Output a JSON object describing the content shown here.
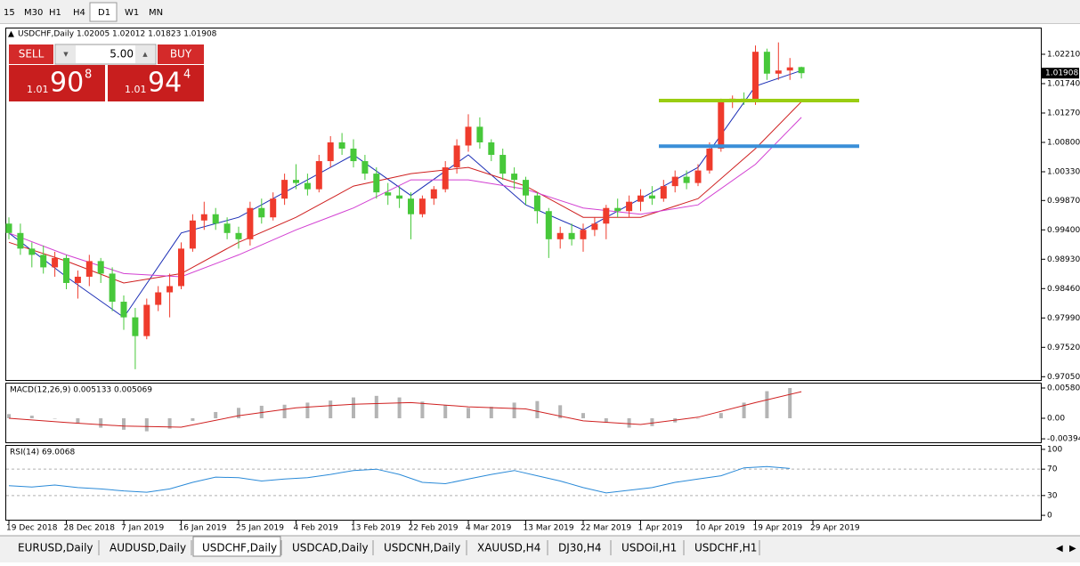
{
  "toolbar": {
    "timeframes": [
      "15",
      "M30",
      "H1",
      "H4",
      "D1",
      "W1",
      "MN"
    ],
    "active_index": 4
  },
  "trade_panel": {
    "sell": "SELL",
    "buy": "BUY",
    "lots": "5.00",
    "bid_prefix": "1.01",
    "bid_big": "90",
    "bid_small": "8",
    "ask_prefix": "1.01",
    "ask_big": "94",
    "ask_small": "4"
  },
  "chart_data": [
    {
      "type": "candlestick",
      "title": "USDCHF,Daily  1.02005 1.02012 1.01823 1.01908",
      "candles": [
        [
          0.995,
          0.996,
          0.9925,
          0.9935
        ],
        [
          0.9935,
          0.995,
          0.99,
          0.991
        ],
        [
          0.991,
          0.992,
          0.988,
          0.99
        ],
        [
          0.99,
          0.9915,
          0.987,
          0.988
        ],
        [
          0.988,
          0.9905,
          0.9865,
          0.9895
        ],
        [
          0.9895,
          0.99,
          0.9845,
          0.9855
        ],
        [
          0.9855,
          0.9875,
          0.983,
          0.9865
        ],
        [
          0.9865,
          0.99,
          0.985,
          0.989
        ],
        [
          0.989,
          0.9895,
          0.9855,
          0.987
        ],
        [
          0.987,
          0.988,
          0.981,
          0.9825
        ],
        [
          0.9825,
          0.9835,
          0.978,
          0.98
        ],
        [
          0.98,
          0.9815,
          0.9717,
          0.977
        ],
        [
          0.977,
          0.983,
          0.9765,
          0.982
        ],
        [
          0.982,
          0.985,
          0.981,
          0.984
        ],
        [
          0.984,
          0.987,
          0.98,
          0.985
        ],
        [
          0.985,
          0.992,
          0.9845,
          0.991
        ],
        [
          0.991,
          0.9965,
          0.9905,
          0.9955
        ],
        [
          0.9955,
          0.9985,
          0.994,
          0.9965
        ],
        [
          0.9965,
          0.9975,
          0.994,
          0.995
        ],
        [
          0.995,
          0.996,
          0.9925,
          0.9935
        ],
        [
          0.9935,
          0.9945,
          0.991,
          0.9925
        ],
        [
          0.9925,
          0.9985,
          0.9915,
          0.9975
        ],
        [
          0.9975,
          0.999,
          0.995,
          0.996
        ],
        [
          0.996,
          1.0,
          0.9955,
          0.999
        ],
        [
          0.999,
          1.003,
          0.998,
          1.002
        ],
        [
          1.002,
          1.0045,
          1.0005,
          1.0015
        ],
        [
          1.0015,
          1.003,
          0.9995,
          1.0005
        ],
        [
          1.0005,
          1.006,
          1.0,
          1.005
        ],
        [
          1.005,
          1.009,
          1.004,
          1.008
        ],
        [
          1.008,
          1.0095,
          1.006,
          1.007
        ],
        [
          1.007,
          1.0085,
          1.004,
          1.005
        ],
        [
          1.005,
          1.006,
          1.002,
          1.003
        ],
        [
          1.003,
          1.004,
          0.999,
          1.0
        ],
        [
          1.0,
          1.0015,
          0.998,
          0.9995
        ],
        [
          0.9995,
          1.001,
          0.9975,
          0.999
        ],
        [
          0.999,
          1.0,
          0.9925,
          0.9965
        ],
        [
          0.9965,
          0.9995,
          0.996,
          0.999
        ],
        [
          0.999,
          1.001,
          0.998,
          1.0005
        ],
        [
          1.0005,
          1.005,
          1.0,
          1.004
        ],
        [
          1.004,
          1.0085,
          1.003,
          1.0075
        ],
        [
          1.0075,
          1.0125,
          1.0065,
          1.0105
        ],
        [
          1.0105,
          1.012,
          1.007,
          1.008
        ],
        [
          1.008,
          1.0085,
          1.005,
          1.006
        ],
        [
          1.006,
          1.007,
          1.002,
          1.003
        ],
        [
          1.003,
          1.004,
          1.0005,
          1.002
        ],
        [
          1.002,
          1.0025,
          0.998,
          0.9995
        ],
        [
          0.9995,
          1.0,
          0.995,
          0.997
        ],
        [
          0.997,
          0.9975,
          0.9895,
          0.9925
        ],
        [
          0.9925,
          0.9945,
          0.991,
          0.9935
        ],
        [
          0.9935,
          0.995,
          0.9915,
          0.9925
        ],
        [
          0.9925,
          0.995,
          0.9905,
          0.994
        ],
        [
          0.994,
          0.996,
          0.993,
          0.995
        ],
        [
          0.995,
          0.998,
          0.9925,
          0.9975
        ],
        [
          0.9975,
          0.999,
          0.996,
          0.997
        ],
        [
          0.997,
          0.9995,
          0.996,
          0.9985
        ],
        [
          0.9985,
          1.0005,
          0.997,
          0.9995
        ],
        [
          0.9995,
          1.001,
          0.998,
          0.999
        ],
        [
          0.999,
          1.002,
          0.9985,
          1.001
        ],
        [
          1.001,
          1.0035,
          1.0,
          1.0025
        ],
        [
          1.0025,
          1.0035,
          1.0005,
          1.0015
        ],
        [
          1.0015,
          1.0045,
          1.001,
          1.0035
        ],
        [
          1.0035,
          1.008,
          1.003,
          1.007
        ],
        [
          1.007,
          1.015,
          1.0065,
          1.0145
        ],
        [
          1.0145,
          1.0155,
          1.0135,
          1.015
        ],
        [
          1.015,
          1.016,
          1.014,
          1.0145
        ],
        [
          1.0145,
          1.0235,
          1.014,
          1.0225
        ],
        [
          1.0225,
          1.023,
          1.018,
          1.019
        ],
        [
          1.019,
          1.024,
          1.018,
          1.0195
        ],
        [
          1.0195,
          1.0215,
          1.018,
          1.02
        ],
        [
          1.02005,
          1.02012,
          1.01823,
          1.01908
        ]
      ],
      "up_color": "#ef3b2c",
      "down_color": "#47c83a",
      "ylim": [
        0.96983,
        1.02637
      ],
      "yticks": [
        {
          "value": 1.0221,
          "label": "1.02210"
        },
        {
          "value": 1.0174,
          "label": "1.01740"
        },
        {
          "value": 1.0127,
          "label": "1.01270"
        },
        {
          "value": 1.008,
          "label": "1.00800"
        },
        {
          "value": 1.0033,
          "label": "1.00330"
        },
        {
          "value": 0.9987,
          "label": "0.99870"
        },
        {
          "value": 0.994,
          "label": "0.99400"
        },
        {
          "value": 0.9893,
          "label": "0.98930"
        },
        {
          "value": 0.9846,
          "label": "0.98460"
        },
        {
          "value": 0.9799,
          "label": "0.97990"
        },
        {
          "value": 0.9752,
          "label": "0.97520"
        },
        {
          "value": 0.9705,
          "label": "0.97050"
        }
      ],
      "current_price": 1.01908,
      "ma_x": [
        0,
        5,
        10,
        15,
        20,
        25,
        30,
        35,
        40,
        45,
        50,
        55,
        60,
        65,
        69
      ],
      "moving_averages": [
        {
          "color": "#1a2db5",
          "values": [
            0.9935,
            0.9865,
            0.98,
            0.9935,
            0.996,
            1.001,
            1.006,
            0.9995,
            1.006,
            0.998,
            0.994,
            0.999,
            1.004,
            1.017,
            1.0195
          ]
        },
        {
          "color": "#cf1f1f",
          "values": [
            0.992,
            0.989,
            0.9855,
            0.987,
            0.992,
            0.996,
            1.001,
            1.003,
            1.004,
            1.001,
            0.996,
            0.996,
            0.999,
            1.007,
            1.0145
          ]
        },
        {
          "color": "#d23fd2",
          "values": [
            0.9935,
            0.99,
            0.987,
            0.9865,
            0.99,
            0.994,
            0.9975,
            1.002,
            1.002,
            1.0005,
            0.9975,
            0.9965,
            0.998,
            1.0045,
            1.012
          ]
        }
      ],
      "hlines": [
        {
          "value": 1.0147,
          "color": "#9acd12"
        },
        {
          "value": 1.0074,
          "color": "#3a8fd8"
        }
      ],
      "date_labels": [
        "19 Dec 2018",
        "28 Dec 2018",
        "7 Jan 2019",
        "16 Jan 2019",
        "25 Jan 2019",
        "4 Feb 2019",
        "13 Feb 2019",
        "22 Feb 2019",
        "4 Mar 2019",
        "13 Mar 2019",
        "22 Mar 2019",
        "1 Apr 2019",
        "10 Apr 2019",
        "19 Apr 2019",
        "29 Apr 2019"
      ]
    },
    {
      "type": "macd",
      "title": "MACD(12,26,9) 0.005133 0.005069",
      "hist_x": [
        0,
        2,
        4,
        6,
        8,
        10,
        12,
        14,
        16,
        18,
        20,
        22,
        24,
        26,
        28,
        30,
        32,
        34,
        36,
        38,
        40,
        42,
        44,
        46,
        48,
        50,
        52,
        54,
        56,
        58,
        60,
        62,
        64,
        66,
        68
      ],
      "histogram": [
        0.0008,
        0.0005,
        0.0,
        -0.001,
        -0.0018,
        -0.0022,
        -0.0025,
        -0.002,
        -0.0005,
        0.0012,
        0.002,
        0.0024,
        0.0026,
        0.003,
        0.0034,
        0.004,
        0.0043,
        0.004,
        0.0032,
        0.0025,
        0.002,
        0.0022,
        0.003,
        0.0033,
        0.0025,
        0.001,
        -0.0008,
        -0.0018,
        -0.0015,
        -0.0008,
        0.0,
        0.001,
        0.003,
        0.0052,
        0.0058
      ],
      "hist_color": "#b4b4b4",
      "signal_x": [
        0,
        5,
        10,
        15,
        20,
        25,
        30,
        35,
        40,
        45,
        50,
        55,
        60,
        65,
        69
      ],
      "signal": [
        0.0,
        -0.0008,
        -0.0015,
        -0.0017,
        0.0005,
        0.002,
        0.0027,
        0.003,
        0.0022,
        0.0018,
        -0.0005,
        -0.0012,
        0.0002,
        0.003,
        0.0051
      ],
      "signal_color": "#cf1f1f",
      "ylim": [
        -0.00461,
        0.00666
      ],
      "yticks": [
        0.005805,
        {
          "value": 0,
          "label": "0.00"
        },
        -0.003945
      ]
    },
    {
      "type": "line",
      "title": "RSI(14) 69.0068",
      "x": [
        0,
        2,
        4,
        6,
        8,
        10,
        12,
        14,
        16,
        18,
        20,
        22,
        24,
        26,
        28,
        30,
        32,
        34,
        36,
        38,
        40,
        42,
        44,
        46,
        48,
        50,
        52,
        54,
        56,
        58,
        60,
        62,
        64,
        66,
        68
      ],
      "values": [
        45,
        43,
        46,
        42,
        40,
        37,
        35,
        40,
        50,
        58,
        57,
        52,
        55,
        57,
        62,
        68,
        70,
        62,
        50,
        48,
        55,
        62,
        68,
        60,
        52,
        42,
        34,
        38,
        42,
        50,
        55,
        60,
        72,
        74,
        71
      ],
      "color": "#2a8ad8",
      "ylim": [
        -8,
        105.3
      ],
      "yticks": [
        100,
        70,
        30,
        0
      ],
      "levels": [
        70,
        30
      ]
    }
  ],
  "tabs": [
    "EURUSD,Daily",
    "AUDUSD,Daily",
    "USDCHF,Daily",
    "USDCAD,Daily",
    "USDCNH,Daily",
    "XAUUSD,H4",
    "DJ30,H4",
    "USDOil,H1",
    "USDCHF,H1"
  ],
  "active_tab": 2
}
